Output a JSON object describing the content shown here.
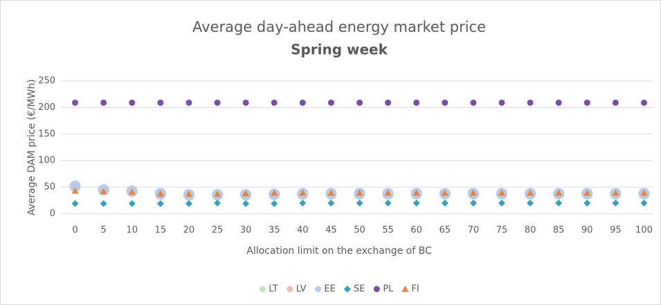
{
  "chart_data": {
    "type": "scatter",
    "title": "Average day-ahead energy market price",
    "subtitle": "Spring week",
    "x_label": "Allocation limit on the exchange of BC",
    "y_label": "Average DAM price (€/MWh)",
    "x": [
      0,
      5,
      10,
      15,
      20,
      25,
      30,
      35,
      40,
      45,
      50,
      55,
      60,
      65,
      70,
      75,
      80,
      85,
      90,
      95,
      100
    ],
    "xlim": [
      -2.5,
      102.5
    ],
    "xticks": [
      0,
      5,
      10,
      15,
      20,
      25,
      30,
      35,
      40,
      45,
      50,
      55,
      60,
      65,
      70,
      75,
      80,
      85,
      90,
      95,
      100
    ],
    "ylim": [
      0,
      250
    ],
    "yticks": [
      0,
      50,
      100,
      150,
      200,
      250
    ],
    "grid": true,
    "legend": "bottom",
    "series": [
      {
        "name": "LT",
        "color": "#c9e3b8",
        "marker": "big-circle",
        "values": [
          51,
          45,
          42,
          37,
          35,
          35,
          35,
          36,
          37,
          37,
          37,
          37,
          37,
          37,
          37,
          37,
          37,
          37,
          37,
          37,
          37
        ]
      },
      {
        "name": "LV",
        "color": "#f2b9b3",
        "marker": "big-circle",
        "values": [
          52,
          45,
          42,
          37,
          35,
          36,
          36,
          37,
          37,
          38,
          38,
          38,
          38,
          38,
          38,
          38,
          38,
          38,
          38,
          38,
          38
        ]
      },
      {
        "name": "EE",
        "color": "#b7cbe8",
        "marker": "big-circle",
        "values": [
          52,
          45,
          43,
          38,
          36,
          36,
          36,
          37,
          38,
          38,
          38,
          38,
          38,
          38,
          38,
          38,
          38,
          38,
          38,
          38,
          38
        ]
      },
      {
        "name": "SE",
        "color": "#35a0c2",
        "marker": "diamond",
        "values": [
          19,
          19,
          19,
          19,
          19,
          20,
          19,
          19,
          20,
          20,
          20,
          20,
          20,
          20,
          20,
          20,
          20,
          20,
          20,
          20,
          20
        ]
      },
      {
        "name": "PL",
        "color": "#7a4ea6",
        "marker": "circle",
        "values": [
          209,
          209,
          209,
          209,
          209,
          209,
          209,
          209,
          209,
          209,
          209,
          209,
          209,
          209,
          209,
          209,
          209,
          209,
          209,
          209,
          209
        ]
      },
      {
        "name": "FI",
        "color": "#ee8136",
        "marker": "triangle",
        "values": [
          43,
          42,
          41,
          38,
          37,
          37,
          38,
          39,
          39,
          39,
          39,
          39,
          39,
          39,
          39,
          39,
          39,
          39,
          39,
          39,
          39
        ]
      }
    ]
  }
}
